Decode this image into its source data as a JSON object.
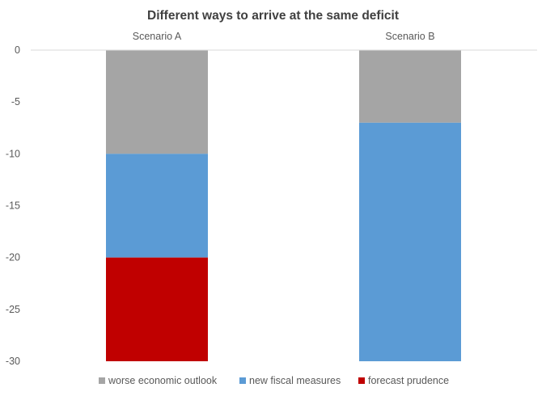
{
  "chart_data": {
    "type": "bar",
    "stacked": true,
    "title": "Different ways to arrive at the same deficit",
    "xlabel": "",
    "ylabel": "",
    "categories": [
      "Scenario A",
      "Scenario B"
    ],
    "category_axis_position": "top",
    "ylim": [
      -30,
      0
    ],
    "yticks": [
      0,
      -5,
      -10,
      -15,
      -20,
      -25,
      -30
    ],
    "grid": false,
    "legend_position": "bottom",
    "series": [
      {
        "name": "worse economic outlook",
        "color": "#A5A5A5",
        "values": [
          -10,
          -7
        ]
      },
      {
        "name": "new fiscal measures",
        "color": "#5B9BD5",
        "values": [
          -10,
          -23
        ]
      },
      {
        "name": "forecast prudence",
        "color": "#C00000",
        "values": [
          -10,
          0
        ]
      }
    ]
  }
}
